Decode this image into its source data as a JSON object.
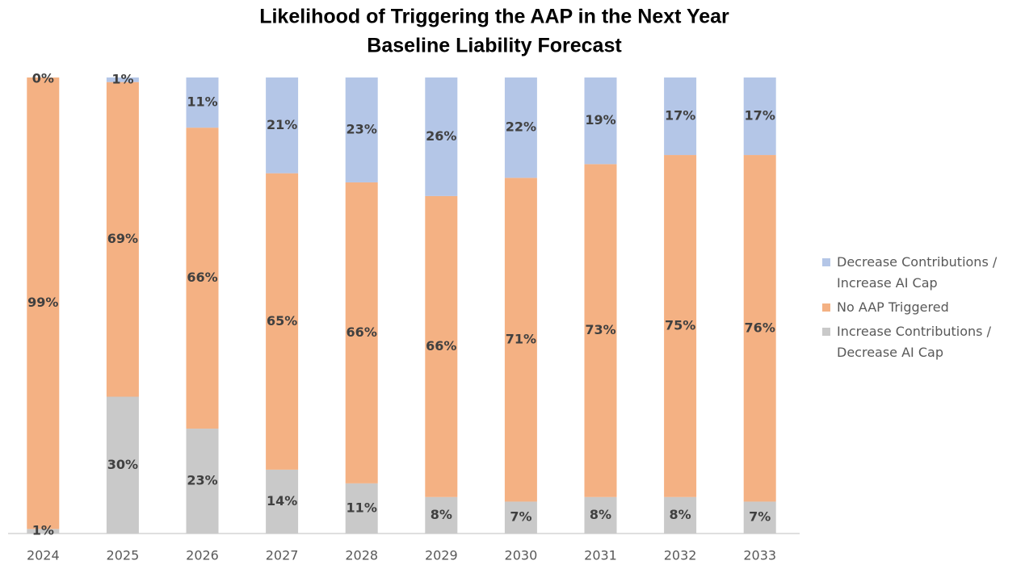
{
  "chart_data": {
    "type": "stacked_bar",
    "title": "Likelihood of Triggering the AAP in the Next Year",
    "subtitle": "Baseline Liability Forecast",
    "categories": [
      "2024",
      "2025",
      "2026",
      "2027",
      "2028",
      "2029",
      "2030",
      "2031",
      "2032",
      "2033"
    ],
    "series": [
      {
        "name": "Increase Contributions / Decrease AI Cap",
        "color": "#c9c9c9",
        "values": [
          1,
          30,
          23,
          14,
          11,
          8,
          7,
          8,
          8,
          7
        ],
        "value_labels": [
          "1%",
          "30%",
          "23%",
          "14%",
          "11%",
          "8%",
          "7%",
          "8%",
          "8%",
          "7%"
        ]
      },
      {
        "name": "No AAP Triggered",
        "color": "#f4b183",
        "values": [
          99,
          69,
          66,
          65,
          66,
          66,
          71,
          73,
          75,
          76
        ],
        "value_labels": [
          "99%",
          "69%",
          "66%",
          "65%",
          "66%",
          "66%",
          "71%",
          "73%",
          "75%",
          "76%"
        ]
      },
      {
        "name": "Decrease Contributions / Increase AI Cap",
        "color": "#b4c6e7",
        "values": [
          0,
          1,
          11,
          21,
          23,
          26,
          22,
          19,
          17,
          17
        ],
        "value_labels": [
          "0%",
          "1%",
          "11%",
          "21%",
          "23%",
          "26%",
          "22%",
          "19%",
          "17%",
          "17%"
        ]
      }
    ],
    "legend": "right"
  }
}
